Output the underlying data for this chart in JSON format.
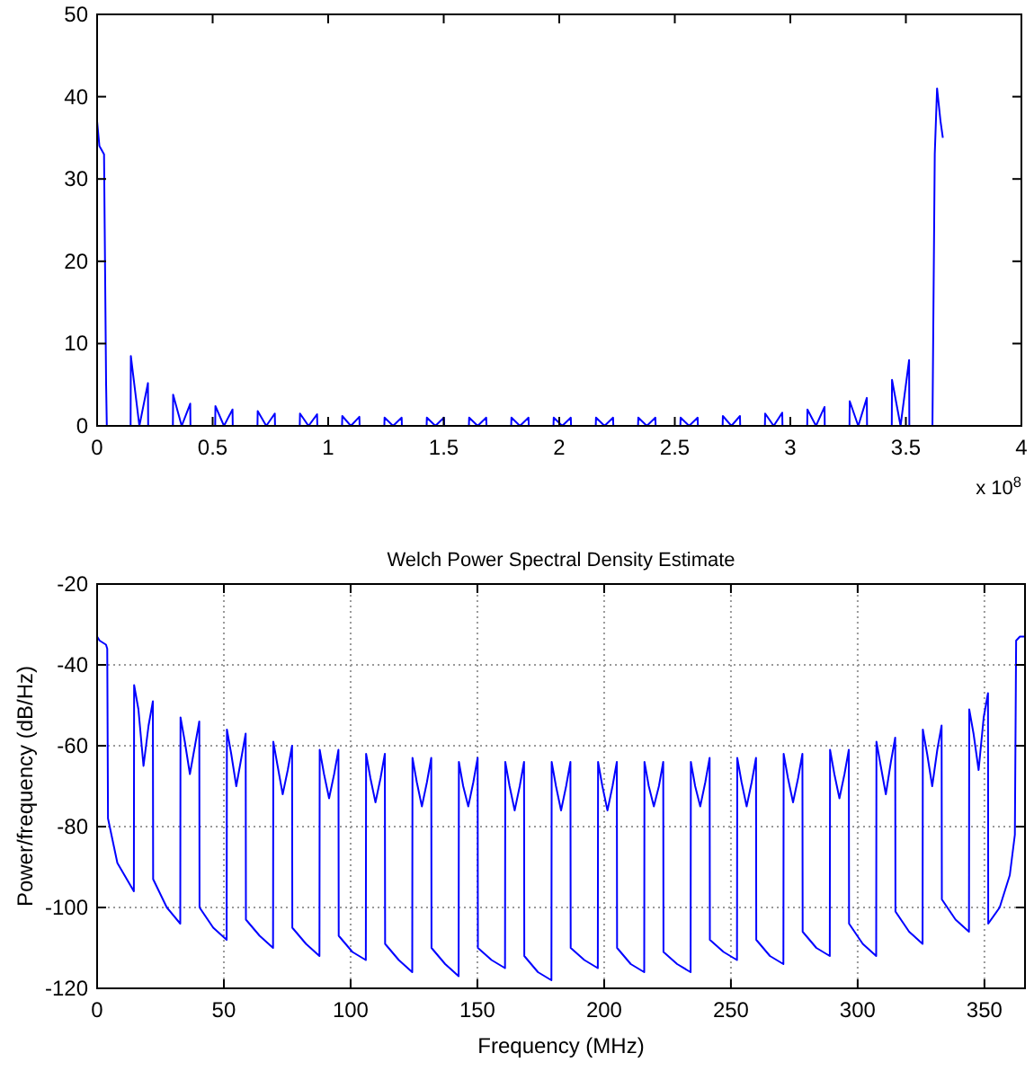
{
  "chart_data": [
    {
      "type": "line",
      "annotations": [
        "x 10$^{8}$"
      ],
      "xlim": [
        0,
        4
      ],
      "ylim": [
        0,
        50
      ],
      "xticks": [
        0,
        0.5,
        1,
        1.5,
        2,
        2.5,
        3,
        3.5,
        4
      ],
      "yticks": [
        0,
        10,
        20,
        30,
        40,
        50
      ],
      "series": [
        {
          "color": "#0000ff",
          "x": [
            0,
            0.01,
            0.03,
            0.039,
            0.042,
            0.145,
            0.146,
            0.183,
            0.22,
            0.221,
            0.328,
            0.329,
            0.366,
            0.403,
            0.404,
            0.511,
            0.512,
            0.549,
            0.586,
            0.587,
            0.694,
            0.695,
            0.732,
            0.769,
            0.77,
            0.877,
            0.878,
            0.915,
            0.952,
            0.953,
            1.06,
            1.061,
            1.098,
            1.135,
            1.136,
            1.243,
            1.244,
            1.281,
            1.318,
            1.319,
            1.426,
            1.427,
            1.464,
            1.501,
            1.502,
            1.609,
            1.61,
            1.647,
            1.684,
            1.685,
            1.792,
            1.793,
            1.83,
            1.867,
            1.868,
            1.975,
            1.976,
            2.013,
            2.05,
            2.051,
            2.158,
            2.159,
            2.196,
            2.233,
            2.234,
            2.341,
            2.342,
            2.379,
            2.416,
            2.417,
            2.524,
            2.525,
            2.562,
            2.599,
            2.6,
            2.707,
            2.708,
            2.745,
            2.782,
            2.783,
            2.89,
            2.891,
            2.928,
            2.965,
            2.966,
            3.073,
            3.074,
            3.111,
            3.148,
            3.149,
            3.256,
            3.257,
            3.294,
            3.331,
            3.332,
            3.439,
            3.44,
            3.477,
            3.514,
            3.515,
            3.615,
            3.625,
            3.635,
            3.65,
            3.66
          ],
          "values": [
            37,
            34,
            33,
            5,
            0,
            0,
            8.5,
            0,
            5.2,
            0,
            0,
            3.8,
            0,
            2.7,
            0,
            0,
            2.4,
            0,
            2,
            0,
            0,
            1.8,
            0,
            1.5,
            0,
            0,
            1.5,
            0,
            1.4,
            0,
            0,
            1.2,
            0,
            1.1,
            0,
            0,
            1,
            0,
            1,
            0,
            0,
            1,
            0,
            1,
            0,
            0,
            1,
            0,
            1,
            0,
            0,
            1,
            0,
            1,
            0,
            0,
            1,
            0,
            1,
            0,
            0,
            1,
            0,
            1,
            0,
            0,
            1,
            0,
            1,
            0,
            0,
            1,
            0,
            1,
            0,
            0,
            1.2,
            0,
            1.2,
            0,
            0,
            1.5,
            0,
            1.6,
            0,
            0,
            2,
            0,
            2.3,
            0,
            0,
            3,
            0,
            3.4,
            0,
            0,
            5.6,
            0,
            8,
            0,
            0,
            33,
            41,
            37,
            35
          ]
        }
      ]
    },
    {
      "type": "line",
      "title": "Welch Power Spectral Density Estimate",
      "xlabel": "Frequency (MHz)",
      "ylabel": "Power/frequency (dB/Hz)",
      "xlim": [
        0,
        366
      ],
      "ylim": [
        -120,
        -20
      ],
      "xticks": [
        0,
        50,
        100,
        150,
        200,
        250,
        300,
        350
      ],
      "yticks": [
        -120,
        -100,
        -80,
        -60,
        -40,
        -20
      ],
      "grid": true,
      "series": [
        {
          "color": "#0000ff",
          "x": [
            0,
            1,
            3.5,
            4,
            4.3,
            8,
            14.5,
            14.6,
            16.3,
            18.3,
            20.3,
            22,
            22.1,
            27.5,
            32.8,
            32.9,
            34.6,
            36.6,
            38.6,
            40.3,
            40.4,
            45.8,
            51.1,
            51.2,
            52.9,
            54.9,
            56.9,
            58.6,
            58.7,
            64.1,
            69.4,
            69.5,
            71.2,
            73.2,
            75.2,
            76.9,
            77,
            82.4,
            87.7,
            87.8,
            89.5,
            91.5,
            93.5,
            95.2,
            95.3,
            100.7,
            106,
            106.1,
            107.8,
            109.8,
            111.8,
            113.5,
            113.6,
            119,
            124.3,
            124.4,
            126.1,
            128.1,
            130.1,
            131.8,
            131.9,
            137.3,
            142.6,
            142.7,
            144.4,
            146.4,
            148.4,
            150.1,
            150.2,
            155.6,
            160.9,
            161,
            162.7,
            164.7,
            166.7,
            168.4,
            168.5,
            173.9,
            179.2,
            179.3,
            181,
            183,
            185,
            186.7,
            186.8,
            192.2,
            197.5,
            197.6,
            199.3,
            201.3,
            203.3,
            205,
            205.1,
            210.5,
            215.8,
            215.9,
            217.6,
            219.6,
            221.6,
            223.3,
            223.4,
            228.8,
            234.1,
            234.2,
            235.9,
            237.9,
            239.9,
            241.6,
            241.7,
            247.1,
            252.4,
            252.5,
            254.2,
            256.2,
            258.2,
            259.9,
            260,
            265.4,
            270.7,
            270.8,
            272.5,
            274.5,
            276.5,
            278.2,
            278.3,
            283.7,
            289,
            289.1,
            290.8,
            292.8,
            294.8,
            296.5,
            296.6,
            302,
            307.3,
            307.4,
            309.1,
            311.1,
            313.1,
            314.8,
            314.9,
            320.3,
            325.6,
            325.7,
            327.4,
            329.4,
            331.4,
            333.1,
            333.2,
            338.6,
            343.9,
            344,
            345.7,
            347.7,
            349.7,
            351.4,
            351.5,
            356,
            360,
            362,
            362.5,
            364,
            366
          ],
          "values": [
            -33,
            -34,
            -35,
            -36,
            -78,
            -89,
            -96,
            -45,
            -51,
            -65,
            -55,
            -49,
            -93,
            -100,
            -104,
            -53,
            -59,
            -67,
            -60,
            -54,
            -100,
            -105,
            -108,
            -56,
            -62,
            -70,
            -63,
            -57,
            -103,
            -107,
            -110,
            -59,
            -65,
            -72,
            -66,
            -60,
            -105,
            -109,
            -112,
            -61,
            -67,
            -73,
            -67,
            -61,
            -107,
            -111,
            -113,
            -62,
            -68,
            -74,
            -68,
            -62,
            -109,
            -113,
            -116,
            -63,
            -69,
            -75,
            -69,
            -63,
            -110,
            -114,
            -117,
            -64,
            -70,
            -75,
            -69,
            -63,
            -110,
            -113,
            -115,
            -64,
            -70,
            -76,
            -70,
            -64,
            -112,
            -116,
            -118,
            -64,
            -70,
            -76,
            -70,
            -64,
            -110,
            -113,
            -115,
            -64,
            -70,
            -76,
            -70,
            -64,
            -110,
            -114,
            -116,
            -64,
            -70,
            -75,
            -70,
            -64,
            -111,
            -114,
            -116,
            -64,
            -70,
            -75,
            -69,
            -63,
            -108,
            -111,
            -113,
            -63,
            -69,
            -75,
            -69,
            -63,
            -108,
            -112,
            -114,
            -62,
            -68,
            -74,
            -68,
            -62,
            -106,
            -110,
            -112,
            -61,
            -67,
            -73,
            -67,
            -61,
            -104,
            -109,
            -112,
            -59,
            -65,
            -72,
            -64,
            -58,
            -101,
            -106,
            -109,
            -56,
            -62,
            -70,
            -61,
            -55,
            -98,
            -103,
            -106,
            -51,
            -57,
            -66,
            -53,
            -47,
            -104,
            -100,
            -92,
            -82,
            -34,
            -33,
            -33
          ]
        }
      ]
    }
  ]
}
